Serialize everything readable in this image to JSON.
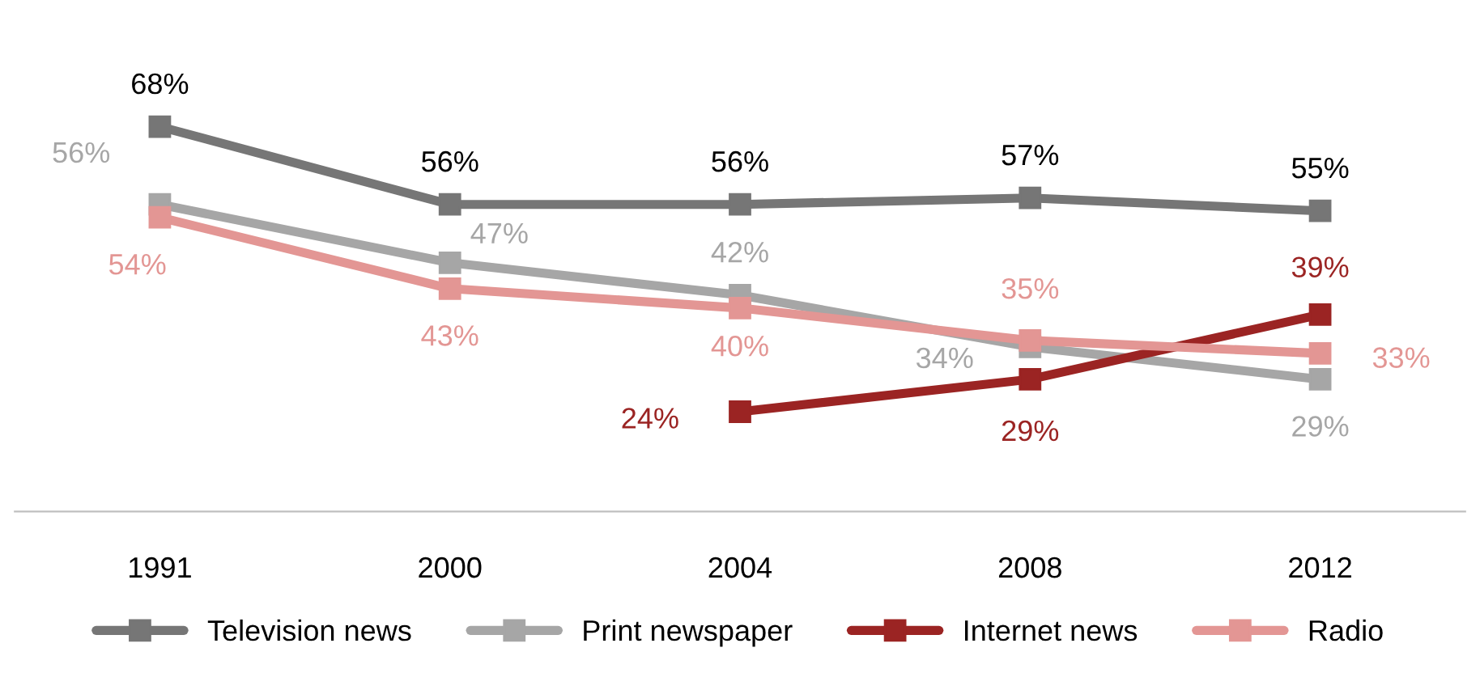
{
  "chart_data": {
    "type": "line",
    "categories": [
      "1991",
      "2000",
      "2004",
      "2008",
      "2012"
    ],
    "series": [
      {
        "name": "Television news",
        "color": "#767676",
        "values": [
          68,
          56,
          56,
          57,
          55
        ],
        "value_labels": [
          "68%",
          "56%",
          "56%",
          "57%",
          "55%"
        ]
      },
      {
        "name": "Print newspaper",
        "color": "#a6a6a6",
        "values": [
          56,
          47,
          42,
          34,
          29
        ],
        "value_labels": [
          "56%",
          "47%",
          "42%",
          "34%",
          "29%"
        ]
      },
      {
        "name": "Internet news",
        "color": "#9b2423",
        "values": [
          null,
          null,
          24,
          29,
          39
        ],
        "value_labels": [
          null,
          null,
          "24%",
          "29%",
          "39%"
        ]
      },
      {
        "name": "Radio",
        "color": "#e39694",
        "values": [
          54,
          43,
          40,
          35,
          33
        ],
        "value_labels": [
          "54%",
          "43%",
          "40%",
          "35%",
          "33%"
        ]
      }
    ],
    "marker": "square",
    "line_style": "solid",
    "legend": "bottom",
    "tick_labels": "x"
  }
}
